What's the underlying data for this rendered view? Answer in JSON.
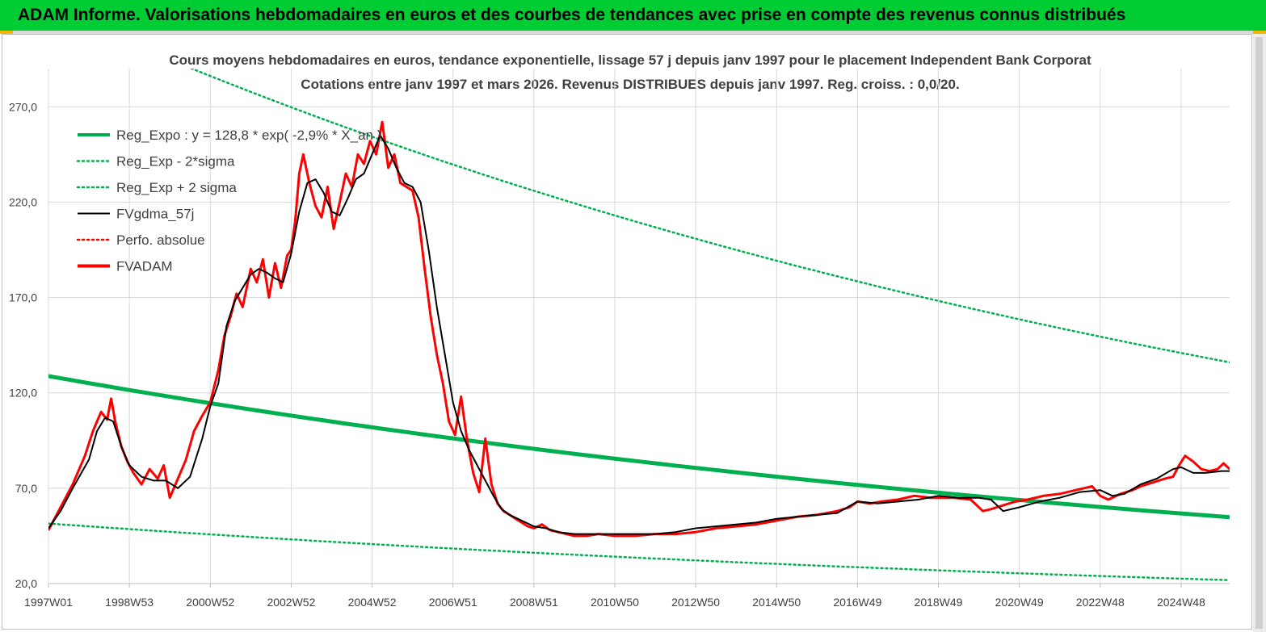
{
  "banner": {
    "title": "ADAM Informe. Valorisations hebdomadaires en euros et des courbes de tendances avec prise en compte des revenus connus distribués"
  },
  "chart_data": {
    "type": "line",
    "title": "Cours moyens hebdomadaires en euros, tendance exponentielle, lissage 57 j depuis janv 1997  pour le placement Independent Bank Corporat",
    "subtitle": "Cotations entre janv 1997 et mars 2026. Revenus  DISTRIBUES depuis janv 1997.  Reg. croiss. : 0,0/20.",
    "xlabel": "",
    "ylabel": "",
    "ylim": [
      20,
      290
    ],
    "xlim": [
      1997.0,
      2026.2
    ],
    "yticks": [
      "20,0",
      "70,0",
      "120,0",
      "170,0",
      "220,0",
      "270,0"
    ],
    "ytick_values": [
      20,
      70,
      120,
      170,
      220,
      270
    ],
    "xticks": [
      "1997W01",
      "1998W53",
      "2000W52",
      "2002W52",
      "2004W52",
      "2006W51",
      "2008W51",
      "2010W50",
      "2012W50",
      "2014W50",
      "2016W49",
      "2018W49",
      "2020W49",
      "2022W48",
      "2024W48"
    ],
    "xtick_values": [
      1997.0,
      1999.0,
      2001.0,
      2003.0,
      2005.0,
      2007.0,
      2009.0,
      2011.0,
      2013.0,
      2015.0,
      2017.0,
      2019.0,
      2021.0,
      2023.0,
      2025.0
    ],
    "grid": true,
    "legend_position": "top-left",
    "series": [
      {
        "name": "Reg_Expo : y = 128,8 * exp( -2,9% *  X_an )",
        "color": "#00b050",
        "style": "solid-thick",
        "x": [
          1997.0,
          2026.2
        ],
        "values": [
          128.8,
          54.8
        ]
      },
      {
        "name": "Reg_Exp - 2*sigma",
        "color": "#00b050",
        "style": "dotted",
        "x": [
          1997.0,
          2026.2
        ],
        "values": [
          51.5,
          21.8
        ]
      },
      {
        "name": "Reg_Exp + 2 sigma",
        "color": "#00b050",
        "style": "dotted",
        "x": [
          1997.0,
          2026.2
        ],
        "values": [
          322,
          136
        ]
      },
      {
        "name": "FVgdma_57j",
        "color": "#000000",
        "style": "solid",
        "x": [
          1997.0,
          1997.3,
          1997.6,
          1998.0,
          1998.2,
          1998.4,
          1998.6,
          1998.8,
          1999.0,
          1999.3,
          1999.6,
          1999.9,
          2000.2,
          2000.5,
          2000.8,
          2001.0,
          2001.2,
          2001.4,
          2001.6,
          2001.8,
          2002.0,
          2002.2,
          2002.4,
          2002.6,
          2002.8,
          2003.0,
          2003.2,
          2003.4,
          2003.6,
          2003.8,
          2004.0,
          2004.2,
          2004.4,
          2004.6,
          2004.8,
          2005.0,
          2005.2,
          2005.4,
          2005.6,
          2005.8,
          2006.0,
          2006.2,
          2006.4,
          2006.6,
          2006.8,
          2007.0,
          2007.2,
          2007.4,
          2007.6,
          2007.8,
          2008.0,
          2008.2,
          2008.4,
          2008.6,
          2008.8,
          2009.0,
          2009.3,
          2009.6,
          2010.0,
          2010.5,
          2011.0,
          2011.5,
          2012.0,
          2012.5,
          2013.0,
          2013.5,
          2014.0,
          2014.5,
          2015.0,
          2015.5,
          2016.0,
          2016.5,
          2017.0,
          2017.5,
          2018.0,
          2018.5,
          2019.0,
          2019.5,
          2020.0,
          2020.3,
          2020.6,
          2021.0,
          2021.5,
          2022.0,
          2022.5,
          2023.0,
          2023.3,
          2023.6,
          2024.0,
          2024.4,
          2024.8,
          2025.0,
          2025.3,
          2025.6,
          2026.0,
          2026.2
        ],
        "values": [
          49,
          58,
          70,
          85,
          100,
          107,
          105,
          92,
          82,
          76,
          74,
          74,
          70,
          76,
          96,
          113,
          125,
          155,
          168,
          175,
          182,
          185,
          183,
          180,
          178,
          193,
          215,
          230,
          232,
          225,
          215,
          213,
          222,
          232,
          235,
          245,
          255,
          248,
          238,
          230,
          228,
          220,
          195,
          165,
          140,
          115,
          100,
          90,
          82,
          74,
          66,
          59,
          56,
          54,
          52,
          50,
          49,
          47,
          46,
          46,
          46,
          46,
          46,
          47,
          49,
          50,
          51,
          52,
          54,
          55,
          56,
          57,
          63,
          62,
          63,
          64,
          66,
          65,
          65,
          64,
          58,
          60,
          63,
          65,
          68,
          69,
          66,
          67,
          72,
          75,
          80,
          81,
          78,
          78,
          79,
          79
        ]
      },
      {
        "name": "Perfo. absolue",
        "color": "#ff0000",
        "style": "dotted",
        "x": [],
        "values": []
      },
      {
        "name": "FVADAM",
        "color": "#ff0000",
        "style": "solid-thick",
        "x": [
          1997.0,
          1997.3,
          1997.6,
          1997.9,
          1998.1,
          1998.3,
          1998.45,
          1998.55,
          1998.65,
          1998.8,
          1998.95,
          1999.1,
          1999.3,
          1999.5,
          1999.7,
          1999.85,
          2000.0,
          2000.2,
          2000.4,
          2000.6,
          2000.8,
          2001.0,
          2001.2,
          2001.35,
          2001.5,
          2001.65,
          2001.8,
          2002.0,
          2002.15,
          2002.3,
          2002.45,
          2002.6,
          2002.75,
          2002.9,
          2003.0,
          2003.1,
          2003.2,
          2003.3,
          2003.45,
          2003.6,
          2003.75,
          2003.9,
          2004.05,
          2004.2,
          2004.35,
          2004.5,
          2004.65,
          2004.8,
          2004.95,
          2005.1,
          2005.25,
          2005.4,
          2005.55,
          2005.7,
          2005.85,
          2006.0,
          2006.15,
          2006.3,
          2006.45,
          2006.6,
          2006.75,
          2006.9,
          2007.05,
          2007.2,
          2007.35,
          2007.5,
          2007.65,
          2007.8,
          2007.95,
          2008.1,
          2008.25,
          2008.4,
          2008.55,
          2008.7,
          2008.85,
          2009.0,
          2009.2,
          2009.4,
          2009.6,
          2009.8,
          2010.0,
          2010.3,
          2010.6,
          2011.0,
          2011.5,
          2012.0,
          2012.5,
          2013.0,
          2013.5,
          2014.0,
          2014.5,
          2015.0,
          2015.5,
          2016.0,
          2016.5,
          2016.8,
          2017.0,
          2017.3,
          2017.6,
          2018.0,
          2018.4,
          2018.8,
          2019.0,
          2019.4,
          2019.8,
          2020.0,
          2020.1,
          2020.3,
          2020.6,
          2020.9,
          2021.2,
          2021.6,
          2022.0,
          2022.4,
          2022.8,
          2023.0,
          2023.2,
          2023.5,
          2023.8,
          2024.0,
          2024.3,
          2024.6,
          2024.8,
          2024.95,
          2025.1,
          2025.3,
          2025.5,
          2025.7,
          2025.9,
          2026.05,
          2026.2
        ],
        "values": [
          48,
          60,
          72,
          87,
          100,
          110,
          106,
          117,
          105,
          92,
          84,
          78,
          72,
          80,
          75,
          82,
          65,
          75,
          85,
          100,
          108,
          115,
          132,
          150,
          160,
          172,
          165,
          185,
          178,
          190,
          170,
          188,
          175,
          192,
          195,
          210,
          235,
          245,
          230,
          218,
          212,
          228,
          206,
          220,
          235,
          228,
          245,
          240,
          252,
          245,
          262,
          238,
          245,
          230,
          228,
          226,
          212,
          185,
          160,
          140,
          125,
          105,
          98,
          118,
          95,
          78,
          68,
          96,
          72,
          62,
          58,
          56,
          54,
          52,
          50,
          49,
          51,
          48,
          47,
          46,
          45,
          45,
          46,
          45,
          45,
          46,
          46,
          47,
          49,
          50,
          51,
          53,
          55,
          56,
          58,
          60,
          63,
          62,
          63,
          64,
          66,
          65,
          65,
          65,
          64,
          60,
          58,
          59,
          61,
          63,
          64,
          66,
          67,
          69,
          71,
          66,
          64,
          67,
          69,
          71,
          73,
          75,
          76,
          82,
          87,
          84,
          80,
          79,
          80,
          83,
          80
        ]
      }
    ]
  }
}
